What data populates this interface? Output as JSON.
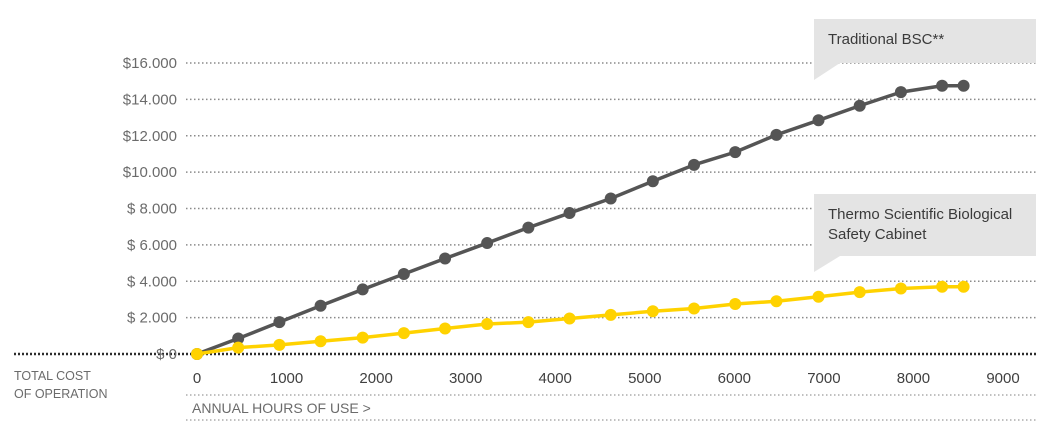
{
  "chart_data": {
    "type": "line",
    "title": "",
    "xlabel": "ANNUAL HOURS OF USE >",
    "ylabel": "",
    "row_label": [
      "TOTAL COST",
      "OF OPERATION"
    ],
    "x_ticks": [
      "0",
      "1000",
      "2000",
      "3000",
      "4000",
      "5000",
      "6000",
      "7000",
      "8000",
      "9000"
    ],
    "y_ticks": [
      {
        "value": 16000,
        "label": "$16.000"
      },
      {
        "value": 14000,
        "label": "$14.000"
      },
      {
        "value": 12000,
        "label": "$12.000"
      },
      {
        "value": 10000,
        "label": "$10.000"
      },
      {
        "value": 8000,
        "label": "$ 8.000"
      },
      {
        "value": 6000,
        "label": "$ 6.000"
      },
      {
        "value": 4000,
        "label": "$ 4.000"
      },
      {
        "value": 2000,
        "label": "$ 2.000"
      },
      {
        "value": 0,
        "label": "$     0"
      }
    ],
    "xlim": [
      0,
      9000
    ],
    "ylim": [
      0,
      16000
    ],
    "grid": true,
    "series": [
      {
        "name": "Traditional BSC**",
        "color": "#555555",
        "x": [
          0,
          460,
          920,
          1380,
          1850,
          2310,
          2770,
          3240,
          3700,
          4160,
          4620,
          5090,
          5550,
          6010,
          6470,
          6940,
          7400,
          7860,
          8320,
          8560
        ],
        "y": [
          0,
          850,
          1750,
          2650,
          3550,
          4400,
          5250,
          6100,
          6950,
          7750,
          8550,
          9500,
          10400,
          11100,
          12050,
          12850,
          13650,
          14400,
          14750,
          14750
        ]
      },
      {
        "name": "Thermo Scientific Biological Safety Cabinet",
        "color": "#ffd200",
        "x": [
          0,
          460,
          920,
          1380,
          1850,
          2310,
          2770,
          3240,
          3700,
          4160,
          4620,
          5090,
          5550,
          6010,
          6470,
          6940,
          7400,
          7860,
          8320,
          8560
        ],
        "y": [
          0,
          350,
          500,
          700,
          900,
          1150,
          1400,
          1650,
          1750,
          1950,
          2150,
          2350,
          2500,
          2750,
          2900,
          3150,
          3400,
          3600,
          3700,
          3700
        ]
      }
    ]
  }
}
